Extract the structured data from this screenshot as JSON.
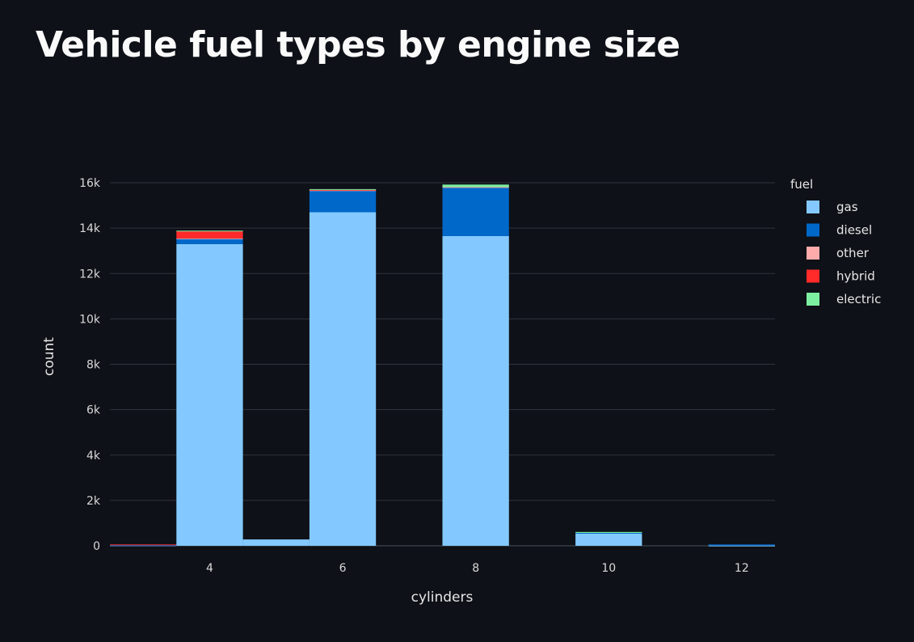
{
  "page": {
    "title": "Vehicle fuel types by engine size"
  },
  "chart_data": {
    "type": "bar",
    "stacked": true,
    "xlabel": "cylinders",
    "ylabel": "count",
    "xlim": [
      2.5,
      12.5
    ],
    "ylim": [
      0,
      16500
    ],
    "x_ticks": [
      4,
      6,
      8,
      10,
      12
    ],
    "x_tick_labels": [
      "4",
      "6",
      "8",
      "10",
      "12"
    ],
    "y_ticks": [
      0,
      2000,
      4000,
      6000,
      8000,
      10000,
      12000,
      14000,
      16000
    ],
    "y_tick_labels": [
      "0",
      "2k",
      "4k",
      "6k",
      "8k",
      "10k",
      "12k",
      "14k",
      "16k"
    ],
    "bin_width": 1,
    "x": [
      3,
      4,
      5,
      6,
      8,
      10,
      12
    ],
    "grid": true,
    "legend_title": "fuel",
    "legend_position": "top-right",
    "series": [
      {
        "name": "gas",
        "color": "#83c9ff",
        "values": [
          20,
          13300,
          280,
          14700,
          13650,
          560,
          10
        ]
      },
      {
        "name": "diesel",
        "color": "#0068c9",
        "values": [
          10,
          230,
          0,
          950,
          2150,
          10,
          50
        ]
      },
      {
        "name": "other",
        "color": "#ffabab",
        "values": [
          0,
          20,
          0,
          20,
          10,
          0,
          0
        ]
      },
      {
        "name": "hybrid",
        "color": "#ff2b2b",
        "values": [
          30,
          320,
          0,
          20,
          0,
          0,
          0
        ]
      },
      {
        "name": "electric",
        "color": "#7defa1",
        "values": [
          0,
          20,
          0,
          30,
          110,
          40,
          0
        ]
      }
    ]
  }
}
